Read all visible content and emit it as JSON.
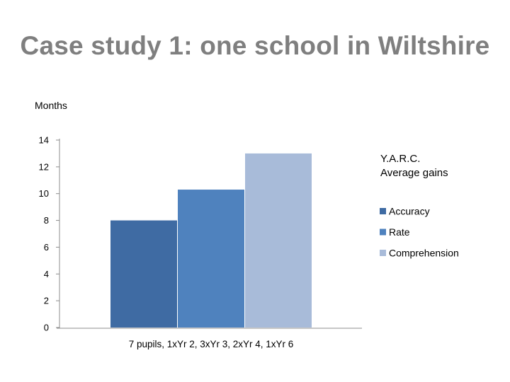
{
  "slide": {
    "title": "Case study 1: one school in Wiltshire"
  },
  "chart_data": {
    "type": "bar",
    "units_label": "Months",
    "legend_title_lines": [
      "Y.A.R.C.",
      "Average gains"
    ],
    "categories": [
      "7 pupils, 1xYr 2, 3xYr 3, 2xYr 4, 1xYr 6"
    ],
    "series": [
      {
        "name": "Accuracy",
        "values": [
          8
        ],
        "color": "#3f6ba3"
      },
      {
        "name": "Rate",
        "values": [
          10.3
        ],
        "color": "#4f82be"
      },
      {
        "name": "Comprehension",
        "values": [
          13
        ],
        "color": "#a8bbd9"
      }
    ],
    "ylim": [
      0,
      14
    ],
    "yticks": [
      0,
      2,
      4,
      6,
      8,
      10,
      12,
      14
    ],
    "grid": false,
    "legend_position": "right"
  }
}
